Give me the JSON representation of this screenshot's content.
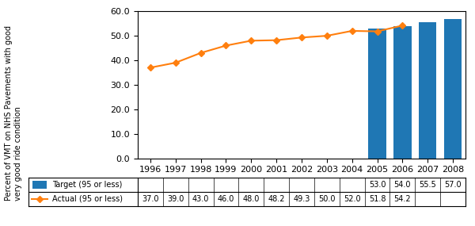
{
  "chart_data": {
    "type": "bar",
    "categories": [
      "1996",
      "1997",
      "1998",
      "1999",
      "2000",
      "2001",
      "2002",
      "2003",
      "2004",
      "2005",
      "2006",
      "2007",
      "2008"
    ],
    "ylabel": "Percent of VMT on NHS Pavements with good\nvery good ride condition",
    "ylim": [
      0,
      60
    ],
    "yticks": [
      {
        "value": 0,
        "label": "0.0"
      },
      {
        "value": 10,
        "label": "10.0"
      },
      {
        "value": 20,
        "label": "20.0"
      },
      {
        "value": 30,
        "label": "30.0"
      },
      {
        "value": 40,
        "label": "40.0"
      },
      {
        "value": 50,
        "label": "50.0"
      },
      {
        "value": 60,
        "label": "60.0"
      }
    ],
    "data_labels": true,
    "series": [
      {
        "name": "Target (95 or less)",
        "type": "bar",
        "values": [
          null,
          null,
          null,
          null,
          null,
          null,
          null,
          null,
          null,
          53.0,
          54.0,
          55.5,
          57.0
        ],
        "value_labels": [
          null,
          null,
          null,
          null,
          null,
          null,
          null,
          null,
          null,
          "53.0",
          "54.0",
          "55.5",
          "57.0"
        ]
      },
      {
        "name": "Actual (95 or less)",
        "type": "line",
        "marker": "diamond",
        "values": [
          37.0,
          39.0,
          43.0,
          46.0,
          48.0,
          48.2,
          49.3,
          50.0,
          52.0,
          51.8,
          54.2,
          null,
          null
        ],
        "value_labels": [
          "37.0",
          "39.0",
          "43.0",
          "46.0",
          "48.0",
          "48.2",
          "49.3",
          "50.0",
          "52.0",
          "51.8",
          "54.2",
          null,
          null
        ]
      }
    ]
  }
}
